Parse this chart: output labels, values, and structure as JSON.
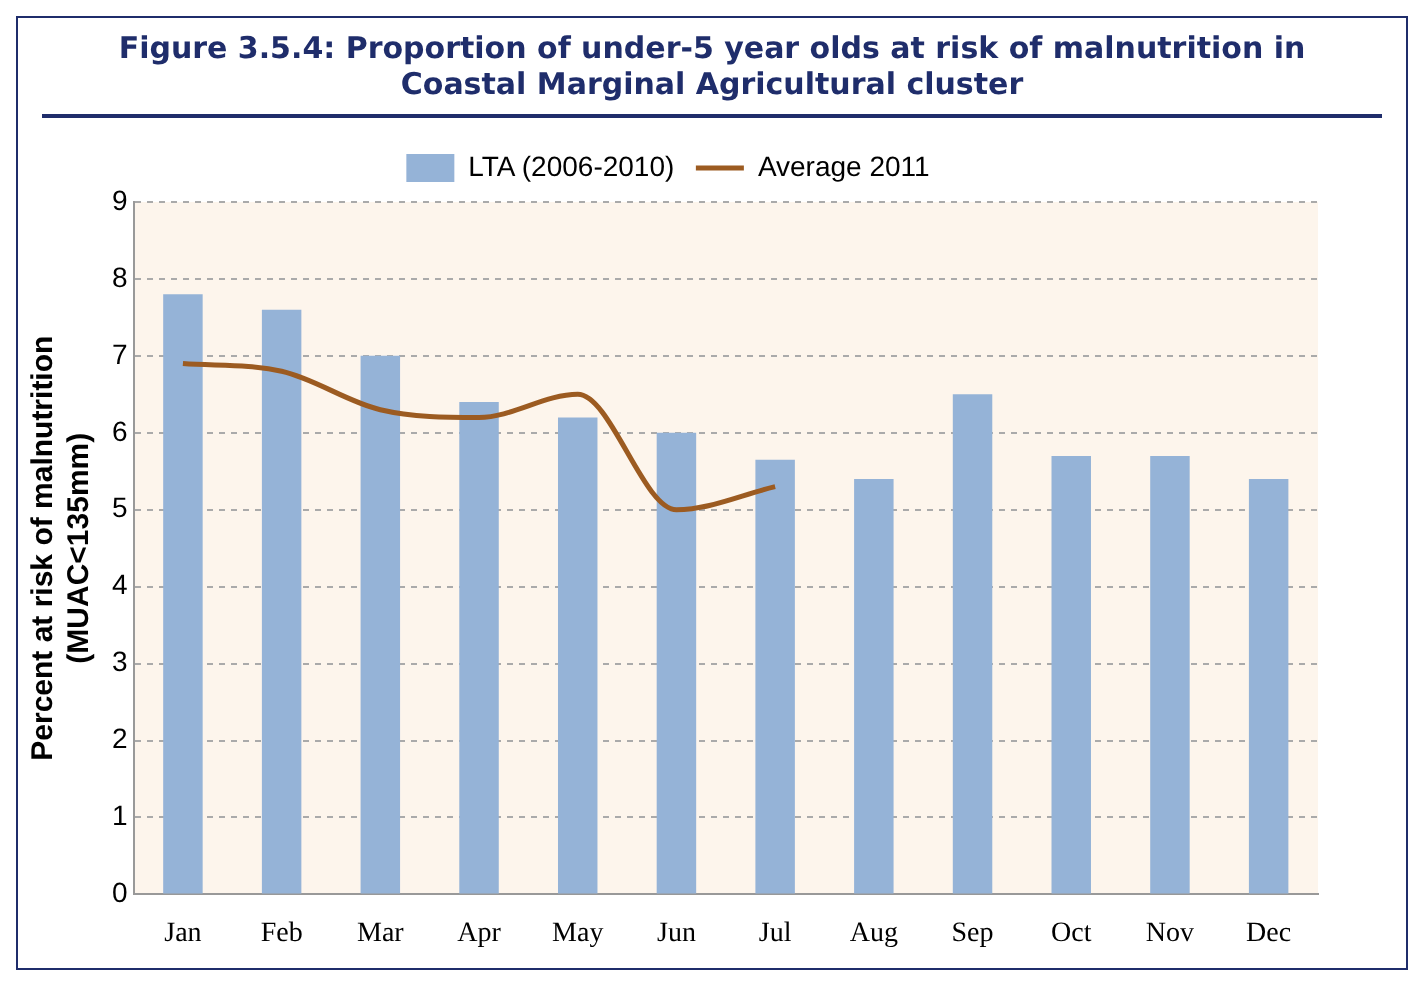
{
  "chart_data": {
    "type": "bar",
    "title": "Figure 3.5.4: Proportion of under-5 year olds at risk of malnutrition in Coastal Marginal Agricultural cluster",
    "ylabel": "Percent at risk of malnutrition (MUAC<135mm)",
    "categories": [
      "Jan",
      "Feb",
      "Mar",
      "Apr",
      "May",
      "Jun",
      "Jul",
      "Aug",
      "Sep",
      "Oct",
      "Nov",
      "Dec"
    ],
    "series": [
      {
        "name": "LTA (2006-2010)",
        "color": "#95b3d7",
        "values": [
          7.8,
          7.6,
          7.0,
          6.4,
          6.2,
          6.0,
          5.65,
          5.4,
          6.5,
          5.7,
          5.7,
          5.4
        ]
      },
      {
        "name": "Average 2011",
        "type": "line",
        "color": "#9c5b21",
        "values": [
          6.9,
          6.8,
          6.3,
          6.2,
          6.5,
          5.0,
          5.3,
          null,
          null,
          null,
          null,
          null
        ]
      }
    ],
    "ylim": [
      0,
      9
    ],
    "yticks": [
      0,
      1,
      2,
      3,
      4,
      5,
      6,
      7,
      8,
      9
    ],
    "grid": "y",
    "legend": "top",
    "marker": "none",
    "line_style": "solid"
  }
}
